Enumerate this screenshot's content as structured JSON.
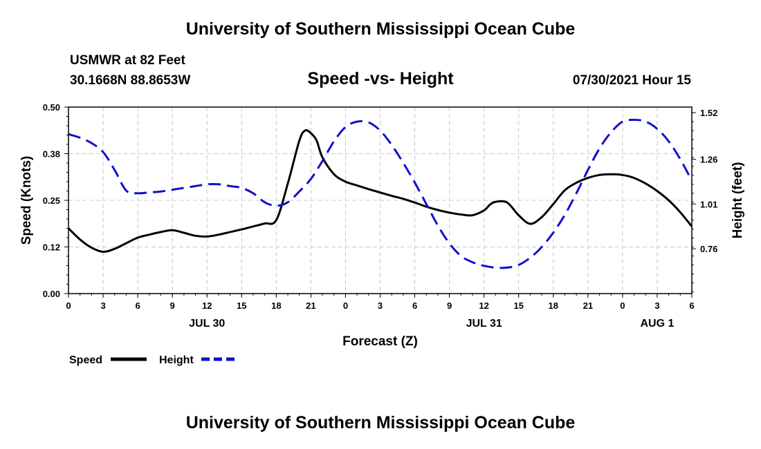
{
  "header": {
    "title": "University of Southern Mississippi Ocean Cube",
    "station": "USMWR at 82 Feet",
    "coords": "30.1668N  88.8653W",
    "subtitle": "Speed -vs- Height",
    "datetime": "07/30/2021 Hour 15",
    "footer": "University of Southern Mississippi Ocean Cube"
  },
  "chart_data": {
    "type": "line",
    "xlabel": "Forecast (Z)",
    "ylabel": "Speed (Knots)",
    "y2label": "Height (feet)",
    "x_tick_labels": [
      "0",
      "3",
      "6",
      "9",
      "12",
      "15",
      "18",
      "21",
      "0",
      "3",
      "6",
      "9",
      "12",
      "15",
      "18",
      "21",
      "0",
      "3",
      "6"
    ],
    "day_labels": [
      {
        "label": "JUL 30",
        "hour": 12
      },
      {
        "label": "JUL 31",
        "hour": 36
      },
      {
        "label": "AUG 1",
        "hour": 51
      }
    ],
    "x_range": [
      0,
      54
    ],
    "ylim": [
      0,
      0.5
    ],
    "y_ticks": [
      "0.00",
      "0.12",
      "0.25",
      "0.38",
      "0.50"
    ],
    "y2lim": [
      0.51,
      1.5513
    ],
    "y2_ticks": [
      "0.76",
      "1.01",
      "1.26",
      "1.52"
    ],
    "grid": true,
    "series": [
      {
        "name": "Speed",
        "axis": "left",
        "color": "#000000",
        "style": "solid",
        "hours": [
          0,
          1,
          2,
          3,
          4,
          5,
          6,
          7,
          8,
          9,
          10,
          11,
          12,
          13,
          14,
          15,
          16,
          17,
          18,
          19,
          20,
          20.5,
          21,
          21.5,
          22,
          23,
          24,
          25,
          26,
          27,
          28,
          29,
          30,
          31,
          32,
          33,
          34,
          35,
          36,
          36.5,
          37,
          38,
          39,
          40,
          41,
          42,
          43,
          44,
          45,
          46,
          47,
          48,
          49,
          50,
          51,
          52,
          53,
          54
        ],
        "values": [
          0.175,
          0.145,
          0.123,
          0.112,
          0.12,
          0.135,
          0.15,
          0.158,
          0.165,
          0.17,
          0.163,
          0.155,
          0.153,
          0.158,
          0.165,
          0.172,
          0.18,
          0.188,
          0.197,
          0.295,
          0.41,
          0.437,
          0.43,
          0.41,
          0.365,
          0.32,
          0.3,
          0.29,
          0.28,
          0.271,
          0.262,
          0.254,
          0.244,
          0.233,
          0.224,
          0.217,
          0.212,
          0.21,
          0.223,
          0.238,
          0.246,
          0.244,
          0.21,
          0.187,
          0.205,
          0.24,
          0.277,
          0.297,
          0.31,
          0.318,
          0.32,
          0.318,
          0.31,
          0.295,
          0.275,
          0.25,
          0.218,
          0.18
        ]
      },
      {
        "name": "Height",
        "axis": "right",
        "color": "#1010cc",
        "style": "dashed",
        "hours": [
          0,
          1,
          2,
          3,
          4,
          5,
          6,
          7,
          8,
          9,
          10,
          11,
          12,
          13,
          14,
          15,
          16,
          17,
          18,
          19,
          20,
          21,
          22,
          23,
          24,
          25,
          26,
          27,
          28,
          29,
          30,
          31,
          32,
          33,
          34,
          35,
          36,
          37,
          38,
          39,
          40,
          41,
          42,
          43,
          44,
          45,
          46,
          47,
          48,
          49,
          50,
          51,
          52,
          53,
          54
        ],
        "values": [
          1.4,
          1.38,
          1.35,
          1.3,
          1.2,
          1.085,
          1.07,
          1.075,
          1.08,
          1.09,
          1.1,
          1.11,
          1.12,
          1.12,
          1.11,
          1.1,
          1.07,
          1.02,
          1.0,
          1.02,
          1.08,
          1.15,
          1.25,
          1.36,
          1.44,
          1.47,
          1.466,
          1.42,
          1.34,
          1.24,
          1.13,
          1.01,
          0.89,
          0.79,
          0.72,
          0.685,
          0.665,
          0.655,
          0.655,
          0.67,
          0.71,
          0.77,
          0.85,
          0.95,
          1.07,
          1.2,
          1.32,
          1.41,
          1.47,
          1.48,
          1.47,
          1.43,
          1.36,
          1.26,
          1.14
        ]
      }
    ],
    "legend": {
      "placement": "bottom-left",
      "items": [
        {
          "label": "Speed",
          "color": "#000000",
          "style": "solid"
        },
        {
          "label": "Height",
          "color": "#1010cc",
          "style": "dashed"
        }
      ]
    }
  }
}
